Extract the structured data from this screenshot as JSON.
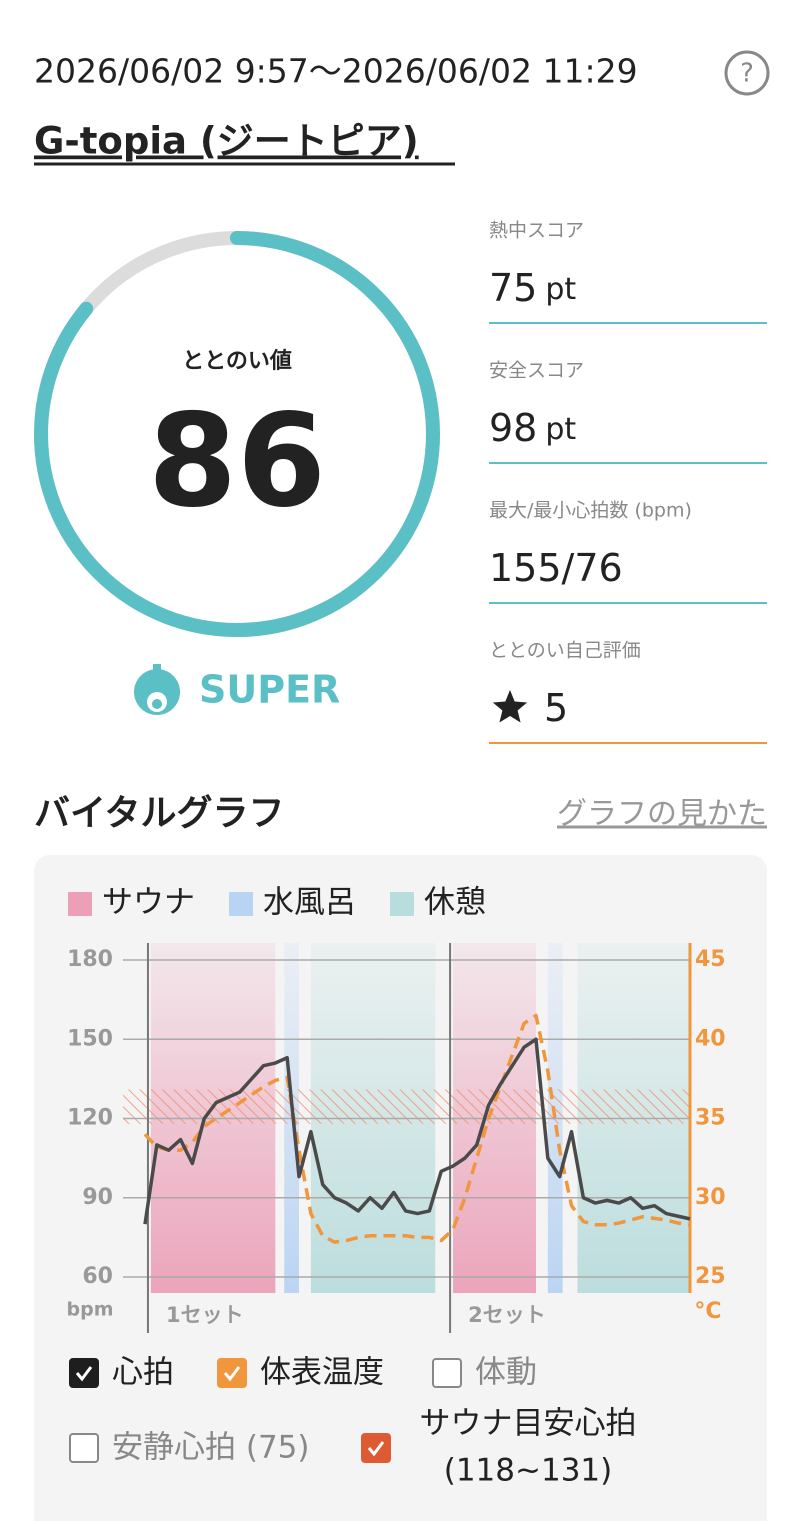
{
  "header": {
    "datetime": "2026/06/02 9:57～2026/06/02 11:29",
    "facility": "G-topia (ジートピア)",
    "help": "?"
  },
  "score": {
    "label": "ととのい値",
    "value": 86,
    "range": [
      0,
      100
    ],
    "level": "SUPER"
  },
  "stats": [
    {
      "label": "熱中スコア",
      "value": 75,
      "unit": "pt"
    },
    {
      "label": "安全スコア",
      "value": 98,
      "unit": "pt"
    },
    {
      "label": "最大/最小心拍数 (bpm)",
      "value": "155/76"
    },
    {
      "label": "ととのい自己評価",
      "value": 5
    }
  ],
  "section": {
    "title": "バイタルグラフ",
    "link": "グラフの見かた"
  },
  "chart_data": {
    "type": "line",
    "xlim": [
      0,
      92
    ],
    "ylim": [
      60,
      180
    ],
    "yticks": [
      60,
      90,
      120,
      150,
      180
    ],
    "y_label": "bpm",
    "y2lim": [
      25,
      45
    ],
    "y2ticks": [
      25,
      30,
      35,
      40,
      45
    ],
    "y2_label": "°C",
    "y2_color": "#f0963c",
    "zones": [
      {
        "name": "サウナ",
        "color": "#eba0b8",
        "spans": [
          [
            1,
            22
          ],
          [
            52,
            66
          ]
        ]
      },
      {
        "name": "水風呂",
        "color": "#b8d3f3",
        "spans": [
          [
            23.5,
            26
          ],
          [
            68,
            70.5
          ]
        ]
      },
      {
        "name": "休憩",
        "color": "#b9dcdc",
        "spans": [
          [
            28,
            49
          ],
          [
            73,
            92
          ]
        ]
      }
    ],
    "sets": [
      {
        "label": "1セット",
        "x": 0.5
      },
      {
        "label": "2セット",
        "x": 51.5
      }
    ],
    "band": {
      "values": [
        118,
        131
      ],
      "color": "#f08f6c"
    },
    "x": [
      0,
      2,
      4,
      6,
      8,
      10,
      12,
      14,
      16,
      18,
      20,
      22,
      24,
      26,
      28,
      30,
      32,
      34,
      36,
      38,
      40,
      42,
      44,
      46,
      48,
      50,
      52,
      54,
      56,
      58,
      60,
      62,
      64,
      66,
      68,
      70,
      72,
      74,
      76,
      78,
      80,
      82,
      84,
      86,
      88,
      90,
      92
    ],
    "series": [
      {
        "name": "心拍",
        "color": "#4a4a4a",
        "check_color": "#1e1e1e",
        "checked": true,
        "values": [
          80,
          110,
          108,
          112,
          103,
          120,
          126,
          128,
          130,
          135,
          140,
          141,
          143,
          98,
          115,
          95,
          90,
          88,
          85,
          90,
          86,
          92,
          85,
          84,
          85,
          100,
          102,
          105,
          110,
          125,
          133,
          140,
          147,
          150,
          105,
          98,
          115,
          90,
          88,
          89,
          88,
          90,
          86,
          87,
          84,
          83,
          82
        ]
      },
      {
        "name": "体表温度",
        "color": "#f0963c",
        "check_color": "#f0963c",
        "checked": true,
        "axis": "y2",
        "dashed": true,
        "values": [
          34,
          33.2,
          33,
          33,
          33.5,
          34.5,
          35,
          35.5,
          36,
          36.5,
          37,
          37.4,
          37.6,
          33,
          29,
          27.6,
          27.2,
          27.3,
          27.5,
          27.6,
          27.6,
          27.6,
          27.6,
          27.5,
          27.5,
          27.3,
          28,
          30,
          32.5,
          35,
          37,
          39,
          41,
          41.5,
          38,
          33,
          29.5,
          28.5,
          28.3,
          28.3,
          28.4,
          28.6,
          28.8,
          28.7,
          28.6,
          28.4,
          28.3
        ]
      }
    ],
    "toggles": [
      {
        "label": "体動",
        "checked": false
      },
      {
        "label": "安静心拍 (75)",
        "checked": false
      },
      {
        "label": "サウナ目安心拍",
        "sub": "(118~131)",
        "checked": true,
        "color": "#de5a32"
      }
    ]
  }
}
